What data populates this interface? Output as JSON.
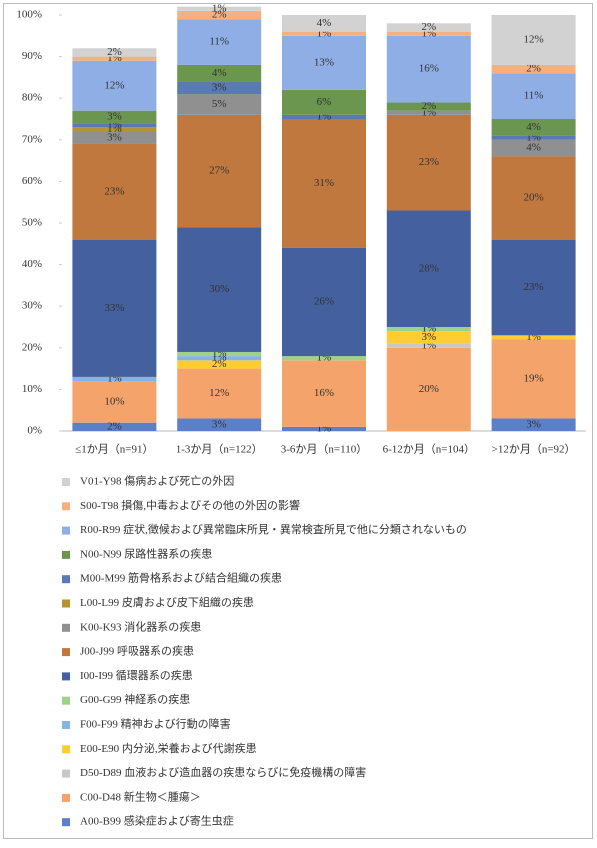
{
  "chart_data": {
    "type": "stacked-bar",
    "categories": [
      "≤1か月（n=91）",
      "1-3か月（n=122）",
      "3-6か月（n=110）",
      "6-12か月（n=104）",
      ">12か月（n=92）"
    ],
    "ylim": [
      0,
      100
    ],
    "yticks": [
      {
        "value": 0,
        "label": "0%"
      },
      {
        "value": 10,
        "label": "10%"
      },
      {
        "value": 20,
        "label": "20%"
      },
      {
        "value": 30,
        "label": "30%"
      },
      {
        "value": 40,
        "label": "40%"
      },
      {
        "value": 50,
        "label": "50%"
      },
      {
        "value": 60,
        "label": "60%"
      },
      {
        "value": 70,
        "label": "70%"
      },
      {
        "value": 80,
        "label": "80%"
      },
      {
        "value": 90,
        "label": "90%"
      },
      {
        "value": 100,
        "label": "100%"
      }
    ],
    "series": [
      {
        "name": "A00-B99 感染症および寄生虫症",
        "color": "#5b7fc8",
        "values": [
          2,
          3,
          1,
          null,
          3
        ],
        "value_labels": [
          "2%",
          "3%",
          "1%",
          null,
          "3%"
        ]
      },
      {
        "name": "C00-D48 新生物＜腫瘍＞",
        "color": "#f4a46a",
        "values": [
          10,
          12,
          16,
          20,
          19
        ],
        "value_labels": [
          "10%",
          "12%",
          "16%",
          "20%",
          "19%"
        ]
      },
      {
        "name": "D50-D89 血液および造血器の疾患ならびに免疫機構の障害",
        "color": "#c8c8c8",
        "values": [
          null,
          null,
          null,
          1,
          null
        ],
        "value_labels": [
          null,
          null,
          null,
          "1%",
          null
        ]
      },
      {
        "name": "E00-E90 内分泌,栄養および代謝疾患",
        "color": "#ffcc33",
        "values": [
          null,
          2,
          null,
          3,
          1
        ],
        "value_labels": [
          null,
          "2%",
          null,
          "3%",
          "1%"
        ]
      },
      {
        "name": "F00-F99 精神および行動の障害",
        "color": "#85b4e2",
        "values": [
          1,
          1,
          null,
          null,
          null
        ],
        "value_labels": [
          "1%",
          "1%",
          null,
          null,
          null
        ]
      },
      {
        "name": "G00-G99 神経系の疾患",
        "color": "#9fd08c",
        "values": [
          null,
          1,
          1,
          1,
          null
        ],
        "value_labels": [
          null,
          "1%",
          "1%",
          "1%",
          null
        ]
      },
      {
        "name": "I00-I99 循環器系の疾患",
        "color": "#44609e",
        "values": [
          33,
          30,
          26,
          28,
          23
        ],
        "value_labels": [
          "33%",
          "30%",
          "26%",
          "28%",
          "23%"
        ]
      },
      {
        "name": "J00-J99 呼吸器系の疾患",
        "color": "#c0783e",
        "values": [
          23,
          27,
          31,
          23,
          20
        ],
        "value_labels": [
          "23%",
          "27%",
          "31%",
          "23%",
          "20%"
        ]
      },
      {
        "name": "K00-K93 消化器系の疾患",
        "color": "#909090",
        "values": [
          3,
          5,
          null,
          1,
          4
        ],
        "value_labels": [
          "3%",
          "5%",
          null,
          "1%",
          "4%"
        ]
      },
      {
        "name": "L00-L99 皮膚および皮下組織の疾患",
        "color": "#b39430",
        "values": [
          1,
          null,
          null,
          null,
          null
        ],
        "value_labels": [
          "1%",
          null,
          null,
          null,
          null
        ]
      },
      {
        "name": "M00-M99 筋骨格系および結合組織の疾患",
        "color": "#5a7bb0",
        "values": [
          1,
          3,
          1,
          null,
          1
        ],
        "value_labels": [
          "1%",
          "3%",
          "1%",
          null,
          "1%"
        ]
      },
      {
        "name": "N00-N99 尿路性器系の疾患",
        "color": "#6a9650",
        "values": [
          3,
          4,
          6,
          2,
          4
        ],
        "value_labels": [
          "3%",
          "4%",
          "6%",
          "2%",
          "4%"
        ]
      },
      {
        "name": "R00-R99 症状,徴候および異常臨床所見・異常検査所見で他に分類されないもの",
        "color": "#8faee6",
        "values": [
          12,
          11,
          13,
          16,
          11
        ],
        "value_labels": [
          "12%",
          "11%",
          "13%",
          "16%",
          "11%"
        ]
      },
      {
        "name": "S00-T98 損傷,中毒およびその他の外因の影響",
        "color": "#f5b080",
        "values": [
          1,
          2,
          1,
          1,
          2
        ],
        "value_labels": [
          "1%",
          "2%",
          "1%",
          "1%",
          "2%"
        ]
      },
      {
        "name": "V01-Y98 傷病および死亡の外因",
        "color": "#d2d2d2",
        "values": [
          2,
          1,
          4,
          2,
          12
        ],
        "value_labels": [
          "2%",
          "1%",
          "4%",
          "2%",
          "12%"
        ]
      }
    ]
  }
}
